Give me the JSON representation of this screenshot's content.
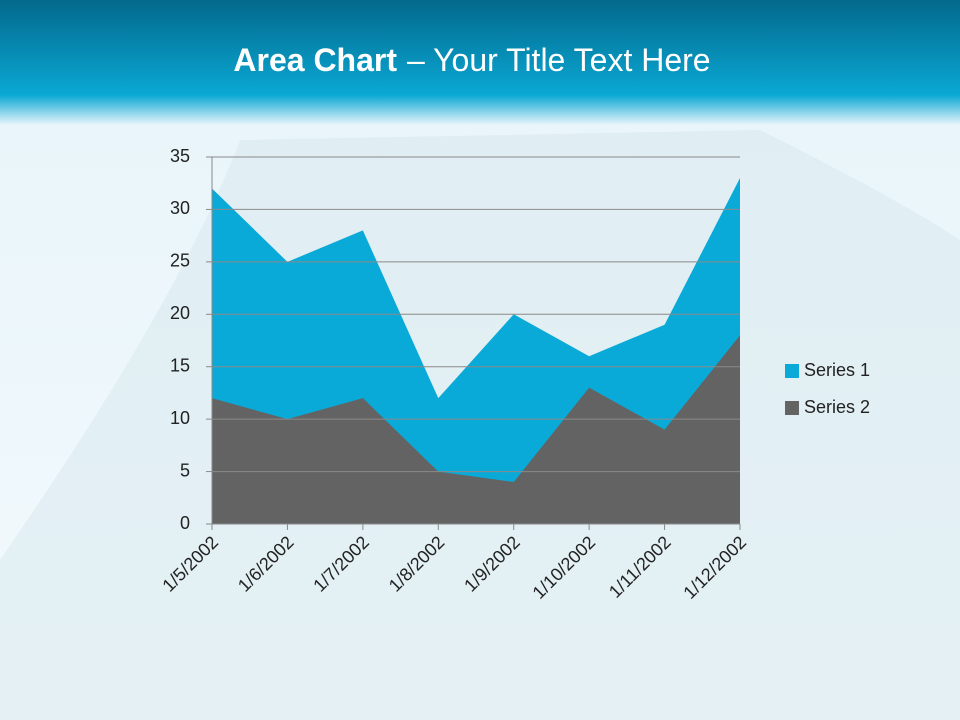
{
  "chart_data": {
    "type": "area",
    "title": [
      "Area Chart",
      "– Your Title Text Here"
    ],
    "categories": [
      "1/5/2002",
      "1/6/2002",
      "1/7/2002",
      "1/8/2002",
      "1/9/2002",
      "1/10/2002",
      "1/11/2002",
      "1/12/2002"
    ],
    "series": [
      {
        "name": "Series 1",
        "color": "#0aaad8",
        "values": [
          32,
          25,
          28,
          12,
          20,
          16,
          19,
          33
        ]
      },
      {
        "name": "Series 2",
        "color": "#636363",
        "values": [
          12,
          10,
          12,
          5,
          4,
          13,
          9,
          18
        ]
      }
    ],
    "ylim": [
      0,
      35
    ],
    "yticks": [
      0,
      5,
      10,
      15,
      20,
      25,
      30,
      35
    ],
    "grid": true,
    "legend": "right"
  }
}
